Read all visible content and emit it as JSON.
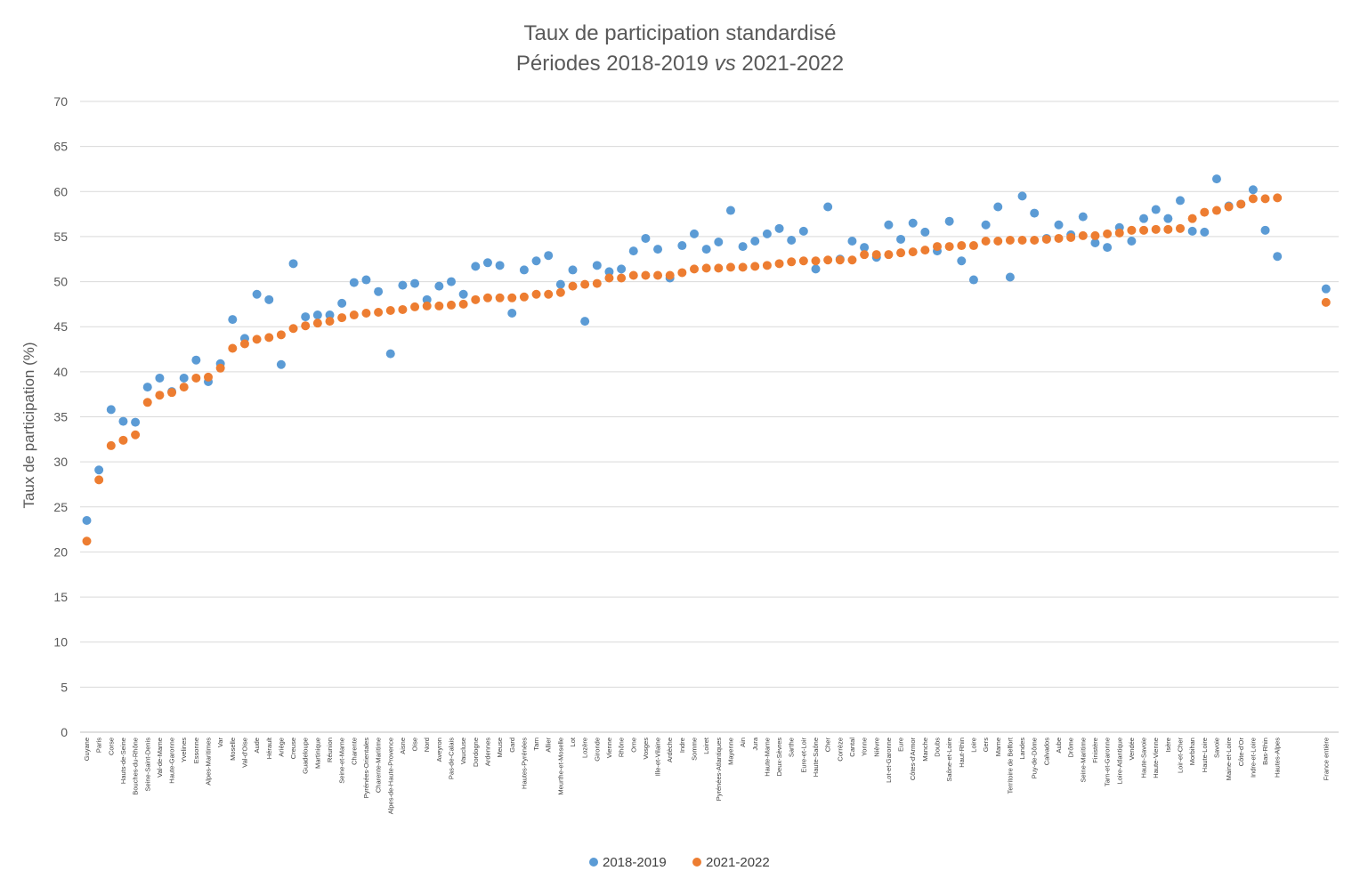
{
  "chart_data": {
    "type": "scatter",
    "title": [
      "Taux de participation standardisé",
      "Périodes 2018-2019 ",
      "vs",
      " 2021-2022"
    ],
    "ylabel": "Taux de participation (%)",
    "xlabel": "",
    "ylim": [
      0,
      70
    ],
    "yticks": [
      0,
      5,
      10,
      15,
      20,
      25,
      30,
      35,
      40,
      45,
      50,
      55,
      60,
      65,
      70
    ],
    "grid": true,
    "legend_position": "bottom",
    "colors": {
      "s2018": "#5b9bd5",
      "s2021": "#ed7d31",
      "grid": "#d9d9d9",
      "axis": "#bfbfbf"
    },
    "categories": [
      "Guyane",
      "Paris",
      "Corse",
      "Hauts-de-Seine",
      "Bouches-du-Rhône",
      "Seine-Saint-Denis",
      "Val-de-Marne",
      "Haute-Garonne",
      "Yvelines",
      "Essonne",
      "Alpes-Maritimes",
      "Var",
      "Moselle",
      "Val-d'Oise",
      "Aude",
      "Hérault",
      "Ariège",
      "Creuse",
      "Guadeloupe",
      "Martinique",
      "Réunion",
      "Seine-et-Marne",
      "Charente",
      "Pyrénées-Orientales",
      "Charente-Maritime",
      "Alpes-de-Haute-Provence",
      "Aisne",
      "Oise",
      "Nord",
      "Aveyron",
      "Pas-de-Calais",
      "Vaucluse",
      "Dordogne",
      "Ardennes",
      "Meuse",
      "Gard",
      "Hautes-Pyrénées",
      "Tarn",
      "Allier",
      "Meurthe-et-Moselle",
      "Lot",
      "Lozère",
      "Gironde",
      "Vienne",
      "Rhône",
      "Orne",
      "Vosges",
      "Ille-et-Vilaine",
      "Ardèche",
      "Indre",
      "Somme",
      "Loiret",
      "Pyrénées-Atlantiques",
      "Mayenne",
      "Ain",
      "Jura",
      "Haute-Marne",
      "Deux-Sèvres",
      "Sarthe",
      "Eure-et-Loir",
      "Haute-Saône",
      "Cher",
      "Corrèze",
      "Cantal",
      "Yonne",
      "Nièvre",
      "Lot-et-Garonne",
      "Eure",
      "Côtes-d'Armor",
      "Manche",
      "Doubs",
      "Saône-et-Loire",
      "Haut-Rhin",
      "Loire",
      "Gers",
      "Marne",
      "Territoire de Belfort",
      "Landes",
      "Puy-de-Dôme",
      "Calvados",
      "Aube",
      "Drôme",
      "Seine-Maritime",
      "Finistère",
      "Tarn-et-Garonne",
      "Loire-Atlantique",
      "Vendée",
      "Haute-Savoie",
      "Haute-Vienne",
      "Isère",
      "Loir-et-Cher",
      "Morbihan",
      "Haute-Loire",
      "Savoie",
      "Maine-et-Loire",
      "Côte-d'Or",
      "Indre-et-Loire",
      "Bas-Rhin",
      "Hautes-Alpes",
      "",
      "",
      "",
      "France entière"
    ],
    "series": [
      {
        "name": "2018-2019",
        "values": [
          23.5,
          29.1,
          35.8,
          34.5,
          34.4,
          38.3,
          39.3,
          37.8,
          39.3,
          41.3,
          38.9,
          40.9,
          45.8,
          43.7,
          48.6,
          48.0,
          40.8,
          52.0,
          46.1,
          46.3,
          46.3,
          47.6,
          49.9,
          50.2,
          48.9,
          42.0,
          49.6,
          49.8,
          48.0,
          49.5,
          50.0,
          48.6,
          51.7,
          52.1,
          51.8,
          46.5,
          51.3,
          52.3,
          52.9,
          49.7,
          51.3,
          45.6,
          51.8,
          51.1,
          51.4,
          53.4,
          54.8,
          53.6,
          50.4,
          54.0,
          55.3,
          53.6,
          54.4,
          57.9,
          53.9,
          54.5,
          55.3,
          55.9,
          54.6,
          55.6,
          51.4,
          58.3,
          52.5,
          54.5,
          53.8,
          52.7,
          56.3,
          54.7,
          56.5,
          55.5,
          53.4,
          56.7,
          52.3,
          50.2,
          56.3,
          58.3,
          50.5,
          59.5,
          57.6,
          54.8,
          56.3,
          55.2,
          57.2,
          54.3,
          53.8,
          56.0,
          54.5,
          57.0,
          58.0,
          57.0,
          59.0,
          55.6,
          55.5,
          61.4,
          58.4,
          58.6,
          60.2,
          55.7,
          52.8,
          null,
          null,
          null,
          49.2
        ]
      },
      {
        "name": "2021-2022",
        "values": [
          21.2,
          28.0,
          31.8,
          32.4,
          33.0,
          36.6,
          37.4,
          37.7,
          38.3,
          39.3,
          39.4,
          40.4,
          42.6,
          43.1,
          43.6,
          43.8,
          44.1,
          44.8,
          45.1,
          45.4,
          45.6,
          46.0,
          46.3,
          46.5,
          46.6,
          46.8,
          46.9,
          47.2,
          47.3,
          47.3,
          47.4,
          47.5,
          48.0,
          48.2,
          48.2,
          48.2,
          48.3,
          48.6,
          48.6,
          48.8,
          49.5,
          49.7,
          49.8,
          50.4,
          50.4,
          50.7,
          50.7,
          50.7,
          50.7,
          51.0,
          51.4,
          51.5,
          51.5,
          51.6,
          51.6,
          51.7,
          51.8,
          52.0,
          52.2,
          52.3,
          52.3,
          52.4,
          52.4,
          52.4,
          53.0,
          53.0,
          53.0,
          53.2,
          53.3,
          53.5,
          53.9,
          53.9,
          54.0,
          54.0,
          54.5,
          54.5,
          54.6,
          54.6,
          54.6,
          54.7,
          54.8,
          54.9,
          55.1,
          55.1,
          55.3,
          55.4,
          55.7,
          55.7,
          55.8,
          55.8,
          55.9,
          57.0,
          57.7,
          57.9,
          58.3,
          58.6,
          59.2,
          59.2,
          59.3,
          null,
          null,
          null,
          47.7
        ]
      }
    ]
  }
}
